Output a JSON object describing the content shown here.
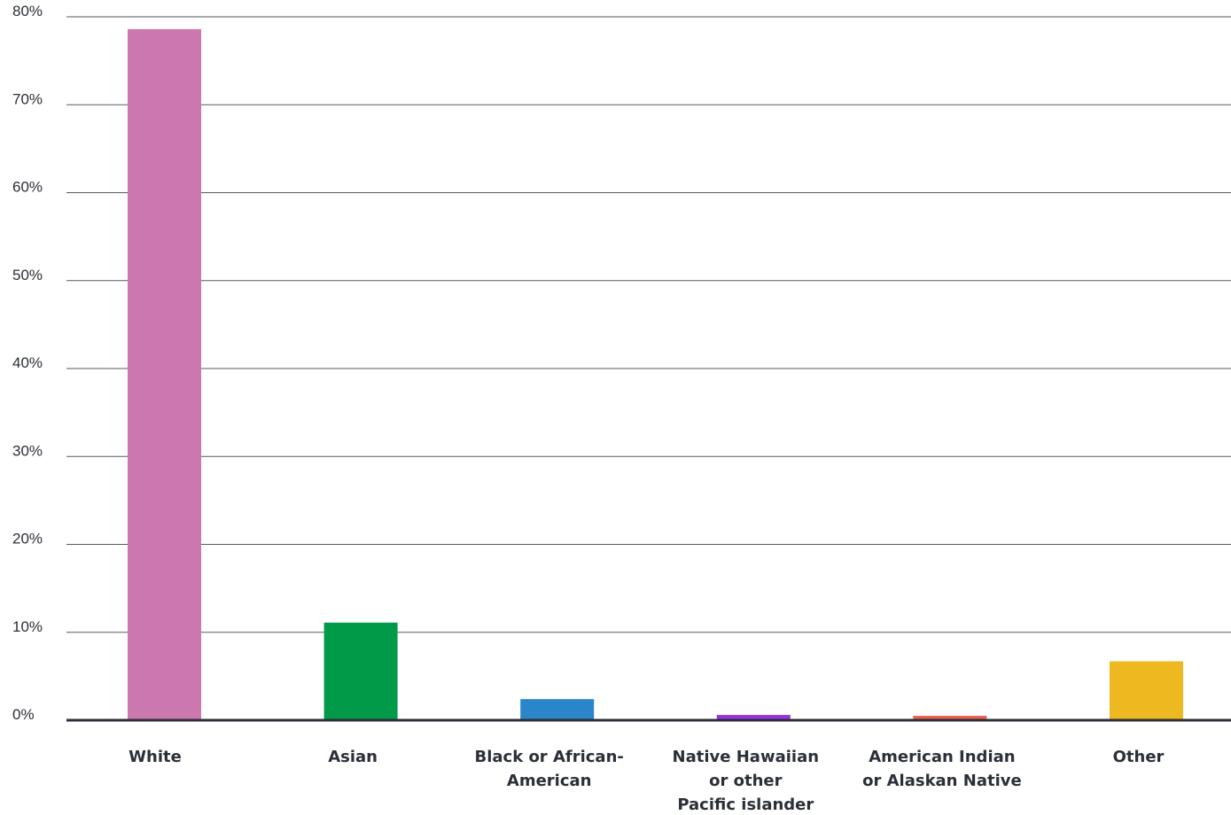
{
  "chart_data": {
    "type": "bar",
    "categories": [
      [
        "White"
      ],
      [
        "Asian"
      ],
      [
        "Black or African-",
        "American"
      ],
      [
        "Native Hawaiian",
        "or other",
        "Pacific islander"
      ],
      [
        "American Indian",
        "or Alaskan Native"
      ],
      [
        "Other"
      ]
    ],
    "values": [
      78.6,
      11.1,
      2.4,
      0.6,
      0.5,
      6.7
    ],
    "colors": [
      "#cc77ae",
      "#009a48",
      "#2a86c8",
      "#9a30e0",
      "#e8624e",
      "#edb820"
    ],
    "ylim": [
      0,
      80
    ],
    "yticks": [
      "0%",
      "10%",
      "20%",
      "30%",
      "40%",
      "50%",
      "60%",
      "70%",
      "80%"
    ],
    "grid": true,
    "title": "",
    "xlabel": "",
    "ylabel": ""
  }
}
